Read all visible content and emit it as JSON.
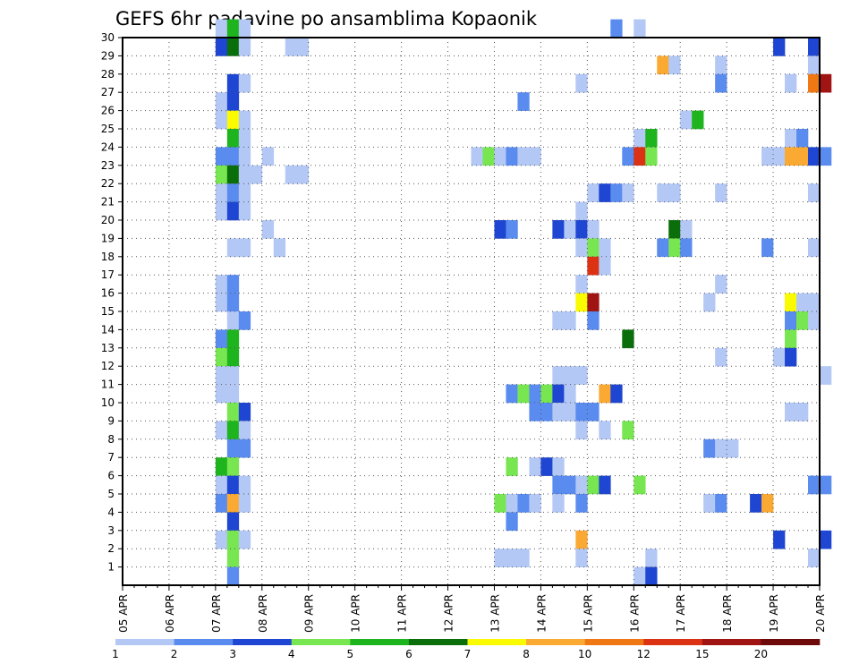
{
  "chart_data": {
    "type": "heatmap",
    "title": "GEFS 6hr padavine po ansamblima Kopaonik",
    "x_ticks": [
      "05 APR",
      "06 APR",
      "07 APR",
      "08 APR",
      "09 APR",
      "10 APR",
      "11 APR",
      "12 APR",
      "13 APR",
      "14 APR",
      "15 APR",
      "16 APR",
      "17 APR",
      "18 APR",
      "19 APR",
      "20 APR"
    ],
    "x_range": [
      "05 APR 00Z",
      "20 APR 00Z"
    ],
    "x_step": "6hr",
    "y_ticks": [
      "1",
      "2",
      "3",
      "4",
      "5",
      "6",
      "7",
      "8",
      "9",
      "10",
      "11",
      "12",
      "13",
      "14",
      "15",
      "16",
      "17",
      "18",
      "19",
      "20",
      "21",
      "22",
      "23",
      "24",
      "25",
      "26",
      "27",
      "28",
      "29",
      "30"
    ],
    "y_range": [
      0,
      30
    ],
    "grid": "dotted",
    "colorbar": {
      "labels": [
        "1",
        "2",
        "3",
        "4",
        "5",
        "6",
        "7",
        "8",
        "10",
        "12",
        "15",
        "20"
      ],
      "colors": [
        "#b4c8f5",
        "#5a8cf0",
        "#1e46d2",
        "#78e650",
        "#1eb41e",
        "#0a6e0a",
        "#fafa00",
        "#faaa32",
        "#f07814",
        "#dc3214",
        "#a01414",
        "#6e0a0a"
      ]
    },
    "cells": [
      [
        30,
        8,
        0
      ],
      [
        30,
        9,
        4
      ],
      [
        30,
        10,
        0
      ],
      [
        30,
        42,
        1
      ],
      [
        30,
        44,
        0
      ],
      [
        29,
        8,
        2
      ],
      [
        29,
        9,
        5
      ],
      [
        29,
        10,
        0
      ],
      [
        29,
        14,
        0
      ],
      [
        29,
        15,
        0
      ],
      [
        29,
        56,
        2
      ],
      [
        29,
        59,
        2
      ],
      [
        28,
        46,
        7
      ],
      [
        28,
        47,
        0
      ],
      [
        28,
        51,
        0
      ],
      [
        28,
        59,
        0
      ],
      [
        27,
        9,
        2
      ],
      [
        27,
        10,
        0
      ],
      [
        27,
        39,
        0
      ],
      [
        27,
        51,
        1
      ],
      [
        27,
        57,
        0
      ],
      [
        27,
        59,
        8
      ],
      [
        27,
        60,
        10
      ],
      [
        26,
        8,
        0
      ],
      [
        26,
        9,
        2
      ],
      [
        26,
        34,
        1
      ],
      [
        25,
        8,
        0
      ],
      [
        25,
        9,
        6
      ],
      [
        25,
        10,
        0
      ],
      [
        25,
        48,
        0
      ],
      [
        25,
        49,
        4
      ],
      [
        24,
        9,
        4
      ],
      [
        24,
        10,
        0
      ],
      [
        24,
        44,
        0
      ],
      [
        24,
        45,
        4
      ],
      [
        24,
        57,
        0
      ],
      [
        24,
        58,
        1
      ],
      [
        23,
        8,
        1
      ],
      [
        23,
        9,
        1
      ],
      [
        23,
        10,
        0
      ],
      [
        23,
        12,
        0
      ],
      [
        23,
        30,
        0
      ],
      [
        23,
        31,
        3
      ],
      [
        23,
        32,
        0
      ],
      [
        23,
        33,
        1
      ],
      [
        23,
        34,
        0
      ],
      [
        23,
        35,
        0
      ],
      [
        23,
        43,
        1
      ],
      [
        23,
        44,
        9
      ],
      [
        23,
        45,
        3
      ],
      [
        23,
        55,
        0
      ],
      [
        23,
        56,
        0
      ],
      [
        23,
        57,
        7
      ],
      [
        23,
        58,
        7
      ],
      [
        23,
        59,
        2
      ],
      [
        23,
        60,
        1
      ],
      [
        22,
        8,
        3
      ],
      [
        22,
        9,
        5
      ],
      [
        22,
        10,
        0
      ],
      [
        22,
        11,
        0
      ],
      [
        22,
        14,
        0
      ],
      [
        22,
        15,
        0
      ],
      [
        21,
        8,
        0
      ],
      [
        21,
        9,
        1
      ],
      [
        21,
        10,
        0
      ],
      [
        21,
        40,
        0
      ],
      [
        21,
        41,
        2
      ],
      [
        21,
        42,
        1
      ],
      [
        21,
        43,
        0
      ],
      [
        21,
        46,
        0
      ],
      [
        21,
        47,
        0
      ],
      [
        21,
        51,
        0
      ],
      [
        21,
        59,
        0
      ],
      [
        20,
        8,
        0
      ],
      [
        20,
        9,
        2
      ],
      [
        20,
        10,
        0
      ],
      [
        20,
        39,
        0
      ],
      [
        19,
        12,
        0
      ],
      [
        19,
        32,
        2
      ],
      [
        19,
        33,
        1
      ],
      [
        19,
        37,
        2
      ],
      [
        19,
        38,
        0
      ],
      [
        19,
        39,
        2
      ],
      [
        19,
        40,
        0
      ],
      [
        19,
        47,
        5
      ],
      [
        19,
        48,
        0
      ],
      [
        18,
        9,
        0
      ],
      [
        18,
        10,
        0
      ],
      [
        18,
        13,
        0
      ],
      [
        18,
        39,
        0
      ],
      [
        18,
        40,
        3
      ],
      [
        18,
        41,
        0
      ],
      [
        18,
        46,
        1
      ],
      [
        18,
        47,
        3
      ],
      [
        18,
        48,
        1
      ],
      [
        18,
        55,
        1
      ],
      [
        18,
        59,
        0
      ],
      [
        17,
        40,
        9
      ],
      [
        17,
        41,
        0
      ],
      [
        16,
        8,
        0
      ],
      [
        16,
        9,
        1
      ],
      [
        16,
        39,
        0
      ],
      [
        16,
        51,
        0
      ],
      [
        15,
        8,
        0
      ],
      [
        15,
        9,
        1
      ],
      [
        15,
        39,
        6
      ],
      [
        15,
        40,
        10
      ],
      [
        15,
        50,
        0
      ],
      [
        15,
        57,
        6
      ],
      [
        15,
        58,
        0
      ],
      [
        15,
        59,
        0
      ],
      [
        14,
        9,
        0
      ],
      [
        14,
        10,
        1
      ],
      [
        14,
        37,
        0
      ],
      [
        14,
        38,
        0
      ],
      [
        14,
        40,
        1
      ],
      [
        14,
        57,
        1
      ],
      [
        14,
        58,
        3
      ],
      [
        14,
        59,
        0
      ],
      [
        13,
        8,
        1
      ],
      [
        13,
        9,
        4
      ],
      [
        13,
        43,
        5
      ],
      [
        13,
        57,
        3
      ],
      [
        12,
        8,
        3
      ],
      [
        12,
        9,
        4
      ],
      [
        12,
        51,
        0
      ],
      [
        12,
        56,
        0
      ],
      [
        12,
        57,
        2
      ],
      [
        11,
        8,
        0
      ],
      [
        11,
        9,
        0
      ],
      [
        11,
        37,
        0
      ],
      [
        11,
        38,
        0
      ],
      [
        11,
        39,
        0
      ],
      [
        11,
        60,
        0
      ],
      [
        10,
        8,
        0
      ],
      [
        10,
        9,
        0
      ],
      [
        10,
        33,
        1
      ],
      [
        10,
        34,
        3
      ],
      [
        10,
        35,
        1
      ],
      [
        10,
        36,
        3
      ],
      [
        10,
        37,
        2
      ],
      [
        10,
        38,
        0
      ],
      [
        10,
        41,
        7
      ],
      [
        10,
        42,
        2
      ],
      [
        9,
        9,
        3
      ],
      [
        9,
        10,
        2
      ],
      [
        9,
        35,
        1
      ],
      [
        9,
        36,
        1
      ],
      [
        9,
        37,
        0
      ],
      [
        9,
        38,
        0
      ],
      [
        9,
        39,
        1
      ],
      [
        9,
        40,
        1
      ],
      [
        9,
        57,
        0
      ],
      [
        9,
        58,
        0
      ],
      [
        8,
        8,
        0
      ],
      [
        8,
        9,
        4
      ],
      [
        8,
        10,
        0
      ],
      [
        8,
        39,
        0
      ],
      [
        8,
        41,
        0
      ],
      [
        8,
        43,
        3
      ],
      [
        7,
        9,
        1
      ],
      [
        7,
        10,
        1
      ],
      [
        7,
        50,
        1
      ],
      [
        7,
        51,
        0
      ],
      [
        7,
        52,
        0
      ],
      [
        6,
        8,
        4
      ],
      [
        6,
        9,
        3
      ],
      [
        6,
        33,
        3
      ],
      [
        6,
        35,
        0
      ],
      [
        6,
        36,
        2
      ],
      [
        6,
        37,
        0
      ],
      [
        5,
        8,
        0
      ],
      [
        5,
        9,
        2
      ],
      [
        5,
        10,
        0
      ],
      [
        5,
        37,
        1
      ],
      [
        5,
        38,
        1
      ],
      [
        5,
        39,
        0
      ],
      [
        5,
        40,
        3
      ],
      [
        5,
        41,
        2
      ],
      [
        5,
        44,
        3
      ],
      [
        5,
        59,
        1
      ],
      [
        5,
        60,
        1
      ],
      [
        4,
        8,
        1
      ],
      [
        4,
        9,
        7
      ],
      [
        4,
        10,
        0
      ],
      [
        4,
        32,
        3
      ],
      [
        4,
        33,
        0
      ],
      [
        4,
        34,
        1
      ],
      [
        4,
        35,
        0
      ],
      [
        4,
        37,
        0
      ],
      [
        4,
        39,
        1
      ],
      [
        4,
        50,
        0
      ],
      [
        4,
        51,
        1
      ],
      [
        4,
        54,
        2
      ],
      [
        4,
        55,
        7
      ],
      [
        3,
        9,
        2
      ],
      [
        3,
        33,
        1
      ],
      [
        2,
        8,
        0
      ],
      [
        2,
        9,
        3
      ],
      [
        2,
        10,
        0
      ],
      [
        2,
        39,
        7
      ],
      [
        2,
        56,
        2
      ],
      [
        2,
        60,
        2
      ],
      [
        1,
        9,
        3
      ],
      [
        1,
        32,
        0
      ],
      [
        1,
        33,
        0
      ],
      [
        1,
        34,
        0
      ],
      [
        1,
        39,
        0
      ],
      [
        1,
        45,
        0
      ],
      [
        1,
        59,
        0
      ],
      [
        0,
        9,
        1
      ],
      [
        0,
        44,
        0
      ],
      [
        0,
        45,
        2
      ]
    ]
  }
}
